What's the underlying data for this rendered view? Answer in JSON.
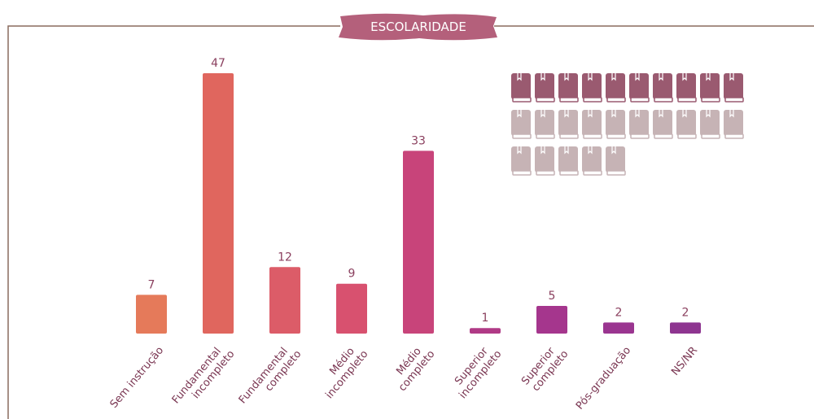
{
  "chart_data": {
    "type": "bar",
    "title": "ESCOLARIDADE",
    "categories": [
      "Sem instrução",
      "Fundamental\nincompleto",
      "Fundamental\ncompleto",
      "Médio\nincompleto",
      "Médio\ncompleto",
      "Superior\nincompleto",
      "Superior\ncompleto",
      "Pós-graduação",
      "NS/NR"
    ],
    "values": [
      7,
      47,
      12,
      9,
      33,
      1,
      5,
      2,
      2
    ],
    "colors": [
      "#e57a5a",
      "#e0665e",
      "#dc5c68",
      "#d8516f",
      "#c8447a",
      "#b03a86",
      "#a5368d",
      "#9a3590",
      "#8e3590"
    ]
  }
}
